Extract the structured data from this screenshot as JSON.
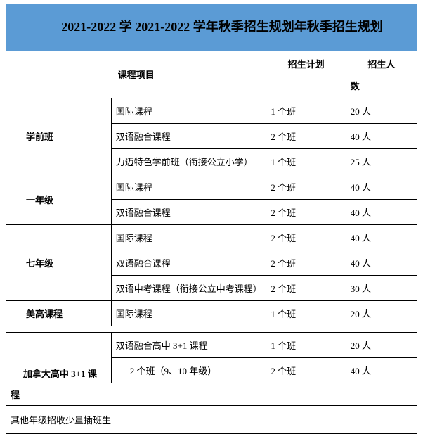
{
  "title": "2021-2022 学 2021-2022 学年秋季招生规划年秋季招生规划",
  "headers": {
    "program": "课程项目",
    "plan": "招生计划",
    "count_l1": "招生人",
    "count_l2": "数"
  },
  "groups": [
    {
      "grade": "学前班",
      "rows": [
        {
          "course": "国际课程",
          "plan": "1 个班",
          "count": "20 人"
        },
        {
          "course": "双语融合课程",
          "plan": "2 个班",
          "count": "40 人"
        },
        {
          "course": "力迈特色学前班（衔接公立小学）",
          "plan": "1 个班",
          "count": "25 人"
        }
      ]
    },
    {
      "grade": "一年级",
      "rows": [
        {
          "course": "国际课程",
          "plan": "2 个班",
          "count": "40 人"
        },
        {
          "course": "双语融合课程",
          "plan": "2 个班",
          "count": "40 人"
        }
      ]
    },
    {
      "grade": "七年级",
      "rows": [
        {
          "course": "国际课程",
          "plan": "2 个班",
          "count": "40 人"
        },
        {
          "course": "双语融合课程",
          "plan": "2 个班",
          "count": "40 人"
        },
        {
          "course": "双语中考课程（衔接公立中考课程）",
          "plan": "2 个班",
          "count": "30 人"
        }
      ]
    },
    {
      "grade": "美高课程",
      "rows": [
        {
          "course": "国际课程",
          "plan": "1 个班",
          "count": "20 人"
        }
      ]
    }
  ],
  "second": {
    "row1": {
      "course": "双语融合高中 3+1 课程",
      "plan": "1 个班",
      "count": "20 人"
    },
    "grade_l1": "加拿大高中 3+1 课",
    "grade_l2": "程",
    "row2": {
      "course": "2 个班（9、10 年级）",
      "plan": "2 个班",
      "count": "40 人"
    }
  },
  "note": "其他年级招收少量插班生"
}
